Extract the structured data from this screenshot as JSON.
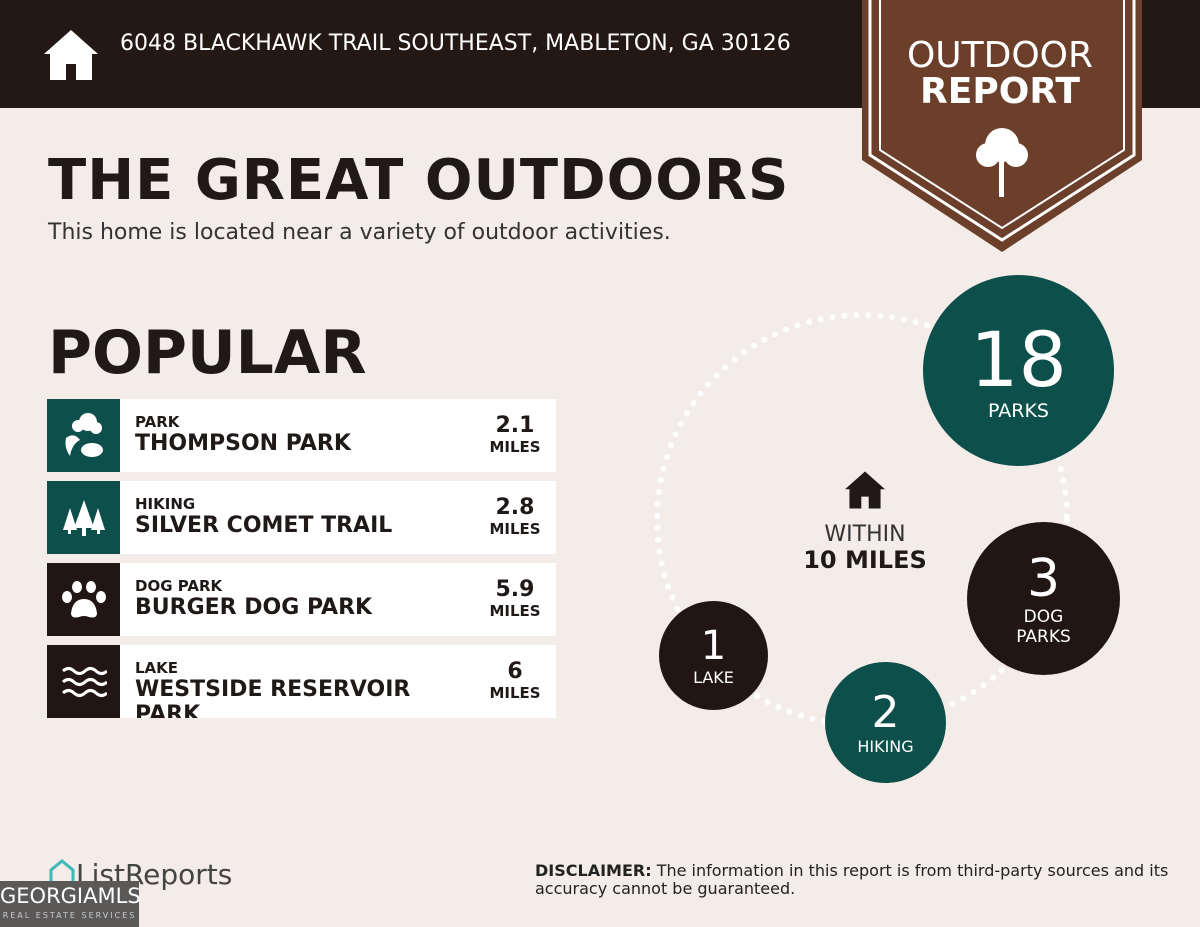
{
  "header": {
    "address": "6048 BLACKHAWK TRAIL SOUTHEAST, MABLETON, GA 30126",
    "icon": "home-icon"
  },
  "badge": {
    "line1": "OUTDOOR",
    "line2": "REPORT",
    "icon": "tree-icon",
    "color": "#6b3f2a"
  },
  "title": "THE GREAT OUTDOORS",
  "subtitle": "This home is located near a variety of outdoor activities.",
  "popular_heading": "POPULAR",
  "popular": [
    {
      "category": "PARK",
      "name": "THOMPSON PARK",
      "distance": "2.1",
      "unit": "MILES",
      "icon": "park-icon",
      "color": "#0d4f4a"
    },
    {
      "category": "HIKING",
      "name": "SILVER COMET TRAIL",
      "distance": "2.8",
      "unit": "MILES",
      "icon": "trees-icon",
      "color": "#0d4f4a"
    },
    {
      "category": "DOG PARK",
      "name": "BURGER DOG PARK",
      "distance": "5.9",
      "unit": "MILES",
      "icon": "paw-icon",
      "color": "#211613"
    },
    {
      "category": "LAKE",
      "name": "WESTSIDE RESERVOIR PARK",
      "distance": "6",
      "unit": "MILES",
      "icon": "waves-icon",
      "color": "#211613"
    }
  ],
  "within": {
    "line1": "WITHIN",
    "line2": "10 MILES"
  },
  "counts": [
    {
      "count": "18",
      "label": "PARKS"
    },
    {
      "count": "3",
      "label": "DOG PARKS"
    },
    {
      "count": "2",
      "label": "HIKING"
    },
    {
      "count": "1",
      "label": "LAKE"
    }
  ],
  "footer": {
    "brand": "ListReports",
    "mls": "GEORGIAMLS",
    "mls_sub": "REAL ESTATE SERVICES",
    "disclaimer_label": "DISCLAIMER:",
    "disclaimer": " The information in this report is from third-party sources and its accuracy cannot be guaranteed."
  }
}
